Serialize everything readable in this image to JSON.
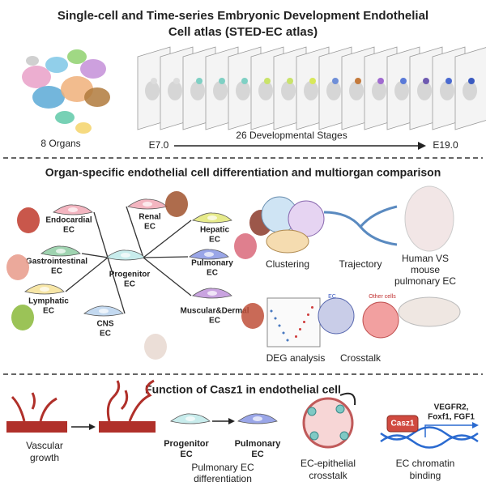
{
  "atlas": {
    "title": [
      "Single-cell and Time-series Embryonic Development Endothelial",
      "Cell atlas (STED-EC atlas)"
    ],
    "organs": "8 Organs",
    "start": "E7.0",
    "stages": "26 Developmental Stages",
    "end": "E19.0"
  },
  "organ_panel": {
    "title": "Organ-specific endothelial cell differentiation and multiorgan comparison",
    "cells": [
      {
        "lines": [
          "Endocardial",
          "EC"
        ]
      },
      {
        "lines": [
          "Renal",
          "EC"
        ]
      },
      {
        "lines": [
          "Hepatic",
          "EC"
        ]
      },
      {
        "lines": [
          "Gastrointestinal",
          "EC"
        ]
      },
      {
        "lines": [
          "Progenitor",
          "EC"
        ]
      },
      {
        "lines": [
          "Pulmonary",
          "EC"
        ]
      },
      {
        "lines": [
          "Lymphatic",
          "EC"
        ]
      },
      {
        "lines": [
          "CNS",
          "EC"
        ]
      },
      {
        "lines": [
          "Muscular&Dermal",
          "EC"
        ]
      }
    ],
    "analyses": [
      {
        "lines": [
          "Clustering"
        ]
      },
      {
        "lines": [
          "Trajectory"
        ]
      },
      {
        "lines": [
          "Human VS",
          "mouse",
          "pulmonary EC"
        ]
      },
      {
        "lines": [
          "DEG analysis"
        ]
      },
      {
        "lines": [
          "Crosstalk"
        ]
      }
    ],
    "crosstalk_labels": [
      "EC",
      "Other cells"
    ]
  },
  "casz1_panel": {
    "title": "Function of Casz1 in endothelial cell",
    "vascular": [
      "Vascular",
      "growth"
    ],
    "progenitor": [
      "Progenitor",
      "EC"
    ],
    "pulmonary": [
      "Pulmonary",
      "EC"
    ],
    "differentiation": [
      "Pulmonary EC",
      "differentiation"
    ],
    "crosstalk": [
      "EC-epithelial",
      "crosstalk"
    ],
    "binding": [
      "EC chromatin",
      "binding"
    ],
    "gene": "Casz1",
    "targets": [
      "VEGFR2,",
      "Foxf1, FGF1"
    ]
  }
}
